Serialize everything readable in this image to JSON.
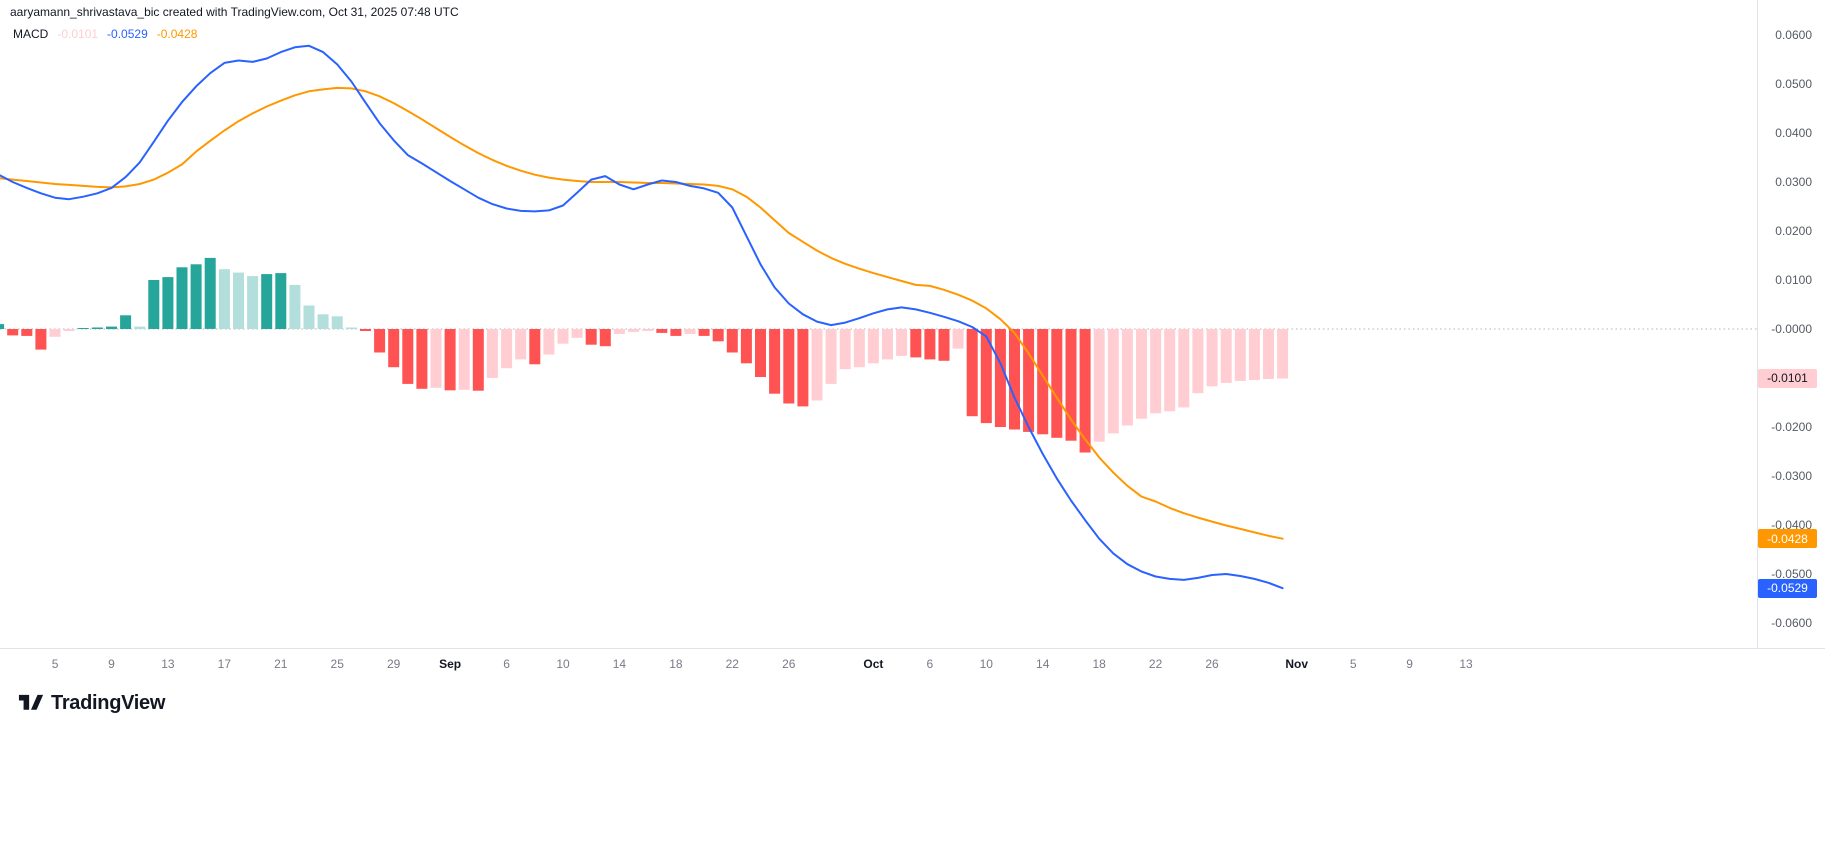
{
  "header": {
    "attribution": "aaryamann_shrivastava_bic created with TradingView.com, Oct 31, 2025 07:48 UTC"
  },
  "legend": {
    "name": "MACD",
    "histogram_value": "-0.0101",
    "macd_value": "-0.0529",
    "signal_value": "-0.0428",
    "colors": {
      "histogram": "#ffcdd2",
      "macd": "#2962ff",
      "signal": "#ff9800"
    }
  },
  "colors": {
    "grow_above": "#26a69a",
    "fall_above": "#b2dfdb",
    "grow_below": "#ffcdd2",
    "fall_below": "#ff5252",
    "macd_line": "#2962ff",
    "signal_line": "#ff9800",
    "zero_line": "#b2b5be"
  },
  "axis": {
    "y_ticks": [
      "0.0600",
      "0.0500",
      "0.0400",
      "0.0300",
      "0.0200",
      "0.0100",
      "-0.0000",
      "-0.0100",
      "-0.0200",
      "-0.0300",
      "-0.0400",
      "-0.0500",
      "-0.0600"
    ],
    "x_ticks": [
      {
        "label": "5",
        "i": 4
      },
      {
        "label": "9",
        "i": 8
      },
      {
        "label": "13",
        "i": 12
      },
      {
        "label": "17",
        "i": 16
      },
      {
        "label": "21",
        "i": 20
      },
      {
        "label": "25",
        "i": 24
      },
      {
        "label": "29",
        "i": 28
      },
      {
        "label": "Sep",
        "i": 32,
        "m": true
      },
      {
        "label": "6",
        "i": 36
      },
      {
        "label": "10",
        "i": 40
      },
      {
        "label": "14",
        "i": 44
      },
      {
        "label": "18",
        "i": 48
      },
      {
        "label": "22",
        "i": 52
      },
      {
        "label": "26",
        "i": 56
      },
      {
        "label": "Oct",
        "i": 62,
        "m": true
      },
      {
        "label": "6",
        "i": 66
      },
      {
        "label": "10",
        "i": 70
      },
      {
        "label": "14",
        "i": 74
      },
      {
        "label": "18",
        "i": 78
      },
      {
        "label": "22",
        "i": 82
      },
      {
        "label": "26",
        "i": 86
      },
      {
        "label": "Nov",
        "i": 92,
        "m": true
      },
      {
        "label": "5",
        "i": 96
      },
      {
        "label": "9",
        "i": 100
      },
      {
        "label": "13",
        "i": 104
      }
    ],
    "badges": [
      {
        "name": "histogram-value-badge",
        "text": "-0.0101",
        "value": -0.0101,
        "bg": "#ffcdd2",
        "fg": "#131722"
      },
      {
        "name": "signal-value-badge",
        "text": "-0.0428",
        "value": -0.0428,
        "bg": "#ff9800",
        "fg": "#ffffff"
      },
      {
        "name": "macd-value-badge",
        "text": "-0.0529",
        "value": -0.0529,
        "bg": "#2962ff",
        "fg": "#ffffff"
      }
    ]
  },
  "chart_data": {
    "type": "macd",
    "title": "MACD",
    "x_unit": "day",
    "x_start_date": "2025-08-01",
    "x_end_date": "2025-10-31",
    "ylim": [
      -0.0655,
      0.067
    ],
    "zero_line": 0,
    "legend_position": "top-left",
    "grid": false,
    "series": [
      {
        "name": "Histogram",
        "type": "bar",
        "values": [
          0.001,
          -0.0013,
          -0.0014,
          -0.0042,
          -0.0016,
          -0.0004,
          0.0002,
          0.0003,
          0.0005,
          0.0028,
          0.0005,
          0.01,
          0.0106,
          0.0126,
          0.0132,
          0.0145,
          0.0122,
          0.0115,
          0.0108,
          0.0112,
          0.0114,
          0.009,
          0.0048,
          0.003,
          0.0026,
          0.0003,
          -0.0004,
          -0.0048,
          -0.0078,
          -0.0112,
          -0.0122,
          -0.012,
          -0.0125,
          -0.0124,
          -0.0126,
          -0.01,
          -0.008,
          -0.0062,
          -0.0072,
          -0.0052,
          -0.003,
          -0.0018,
          -0.0032,
          -0.0035,
          -0.001,
          -0.0006,
          -0.0004,
          -0.0008,
          -0.0014,
          -0.001,
          -0.0014,
          -0.0025,
          -0.0048,
          -0.007,
          -0.0098,
          -0.0132,
          -0.0152,
          -0.0158,
          -0.0146,
          -0.0112,
          -0.0082,
          -0.0078,
          -0.007,
          -0.0062,
          -0.0055,
          -0.0058,
          -0.0062,
          -0.0065,
          -0.004,
          -0.0178,
          -0.0192,
          -0.02,
          -0.0205,
          -0.021,
          -0.0215,
          -0.0222,
          -0.0228,
          -0.0252,
          -0.023,
          -0.0213,
          -0.0197,
          -0.0183,
          -0.0172,
          -0.0168,
          -0.016,
          -0.0131,
          -0.0117,
          -0.011,
          -0.0106,
          -0.0104,
          -0.0102,
          -0.0101
        ]
      },
      {
        "name": "MACD line",
        "type": "line",
        "color": "#2962ff",
        "values": [
          0.0315,
          0.03,
          0.0288,
          0.0277,
          0.0268,
          0.0265,
          0.027,
          0.0277,
          0.0288,
          0.031,
          0.034,
          0.0382,
          0.0425,
          0.0463,
          0.0495,
          0.0522,
          0.0543,
          0.0548,
          0.0545,
          0.0552,
          0.0565,
          0.0575,
          0.0578,
          0.0565,
          0.054,
          0.0505,
          0.0462,
          0.042,
          0.0385,
          0.0355,
          0.0338,
          0.032,
          0.0302,
          0.0285,
          0.0268,
          0.0255,
          0.0246,
          0.0241,
          0.024,
          0.0242,
          0.0252,
          0.0278,
          0.0305,
          0.0312,
          0.0295,
          0.0285,
          0.0295,
          0.0303,
          0.03,
          0.0292,
          0.0287,
          0.0278,
          0.0248,
          0.019,
          0.0132,
          0.0085,
          0.0052,
          0.003,
          0.0015,
          0.0008,
          0.0013,
          0.0022,
          0.0032,
          0.004,
          0.0044,
          0.004,
          0.0033,
          0.0025,
          0.0016,
          0.0004,
          -0.0015,
          -0.007,
          -0.014,
          -0.02,
          -0.0255,
          -0.0305,
          -0.035,
          -0.039,
          -0.0428,
          -0.0458,
          -0.048,
          -0.0495,
          -0.0505,
          -0.051,
          -0.0512,
          -0.0508,
          -0.0502,
          -0.05,
          -0.0504,
          -0.051,
          -0.0518,
          -0.0529
        ]
      },
      {
        "name": "Signal line",
        "type": "line",
        "color": "#ff9800",
        "values": [
          0.0308,
          0.0305,
          0.0302,
          0.0299,
          0.0296,
          0.0294,
          0.0292,
          0.029,
          0.0289,
          0.0291,
          0.0296,
          0.0305,
          0.0319,
          0.0336,
          0.0362,
          0.0384,
          0.0405,
          0.0424,
          0.044,
          0.0454,
          0.0466,
          0.0477,
          0.0485,
          0.0489,
          0.0492,
          0.0491,
          0.0485,
          0.0475,
          0.0461,
          0.0445,
          0.0428,
          0.041,
          0.0392,
          0.0375,
          0.0359,
          0.0345,
          0.0333,
          0.0323,
          0.0315,
          0.0309,
          0.0305,
          0.0302,
          0.03,
          0.03,
          0.03,
          0.0299,
          0.0298,
          0.0298,
          0.0297,
          0.0296,
          0.0295,
          0.0292,
          0.0285,
          0.027,
          0.0248,
          0.0222,
          0.0196,
          0.0178,
          0.016,
          0.0145,
          0.0133,
          0.0123,
          0.0114,
          0.0106,
          0.0098,
          0.009,
          0.0088,
          0.008,
          0.007,
          0.0058,
          0.0042,
          0.002,
          -0.0008,
          -0.005,
          -0.0095,
          -0.014,
          -0.0185,
          -0.0225,
          -0.0262,
          -0.0293,
          -0.032,
          -0.0342,
          -0.0352,
          -0.0365,
          -0.0376,
          -0.0385,
          -0.0393,
          -0.0401,
          -0.0408,
          -0.0415,
          -0.0422,
          -0.0428
        ]
      }
    ]
  },
  "footer": {
    "logo_text": "TradingView"
  }
}
